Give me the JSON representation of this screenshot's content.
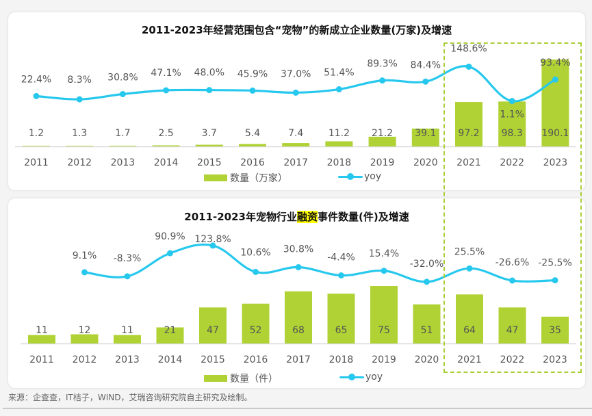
{
  "colors": {
    "bar": "#b0d234",
    "line": "#27c8ee",
    "text": "#555555",
    "axis": "#d9d9d9",
    "highlight_box": "#a9cf38"
  },
  "source_text": "来源：企查查，IT桔子，WIND，艾瑞咨询研究院自主研究及绘制。",
  "chart_data": [
    {
      "type": "bar+line",
      "title": "2011-2023年经营范围包含“宠物”的新成立企业数量(万家)及增速",
      "title_parts": [
        "2011-2023年经营范围包含“宠物”的新成立企业数量(万家)及增速"
      ],
      "categories": [
        "2011",
        "2012",
        "2013",
        "2014",
        "2015",
        "2016",
        "2017",
        "2018",
        "2019",
        "2020",
        "2021",
        "2022",
        "2023"
      ],
      "series": [
        {
          "name": "数量（万家）",
          "kind": "bar",
          "values": [
            1.2,
            1.3,
            1.7,
            2.5,
            3.7,
            5.4,
            7.4,
            11.2,
            21.2,
            39.1,
            97.2,
            98.3,
            190.1
          ],
          "labels": [
            "1.2",
            "1.3",
            "1.7",
            "2.5",
            "3.7",
            "5.4",
            "7.4",
            "11.2",
            "21.2",
            "39.1",
            "97.2",
            "98.3",
            "190.1"
          ]
        },
        {
          "name": "yoy",
          "kind": "line",
          "values": [
            22.4,
            8.3,
            30.8,
            47.1,
            48.0,
            45.9,
            37.0,
            51.4,
            89.3,
            84.4,
            148.6,
            1.1,
            93.4
          ],
          "labels": [
            "22.4%",
            "8.3%",
            "30.8%",
            "47.1%",
            "48.0%",
            "45.9%",
            "37.0%",
            "51.4%",
            "89.3%",
            "84.4%",
            "148.6%",
            "1.1%",
            "93.4%"
          ]
        }
      ],
      "legend": [
        "数量（万家）",
        "yoy"
      ],
      "legend_position": "bottom",
      "highlighted_categories": [
        "2021",
        "2022",
        "2023"
      ]
    },
    {
      "type": "bar+line",
      "title": "2011-2023年宠物行业融资事件数量(件)及增速",
      "title_parts": [
        "2011-2023年宠物行业",
        "融资",
        "事件数量(件)及增速"
      ],
      "categories": [
        "2011",
        "2012",
        "2013",
        "2014",
        "2015",
        "2016",
        "2017",
        "2018",
        "2019",
        "2020",
        "2021",
        "2022",
        "2023"
      ],
      "series": [
        {
          "name": "数量（件）",
          "kind": "bar",
          "values": [
            11,
            12,
            11,
            21,
            47,
            52,
            68,
            65,
            75,
            51,
            64,
            47,
            35
          ],
          "labels": [
            "11",
            "12",
            "11",
            "21",
            "47",
            "52",
            "68",
            "65",
            "75",
            "51",
            "64",
            "47",
            "35"
          ]
        },
        {
          "name": "yoy",
          "kind": "line",
          "values": [
            null,
            9.1,
            -8.3,
            90.9,
            123.8,
            10.6,
            30.8,
            -4.4,
            15.4,
            -32.0,
            25.5,
            -26.6,
            -25.5
          ],
          "labels": [
            "",
            "9.1%",
            "-8.3%",
            "90.9%",
            "123.8%",
            "10.6%",
            "30.8%",
            "-4.4%",
            "15.4%",
            "-32.0%",
            "25.5%",
            "-26.6%",
            "-25.5%"
          ]
        }
      ],
      "legend": [
        "数量（件）",
        "yoy"
      ],
      "legend_position": "bottom",
      "highlighted_categories": [
        "2021",
        "2022",
        "2023"
      ]
    }
  ]
}
